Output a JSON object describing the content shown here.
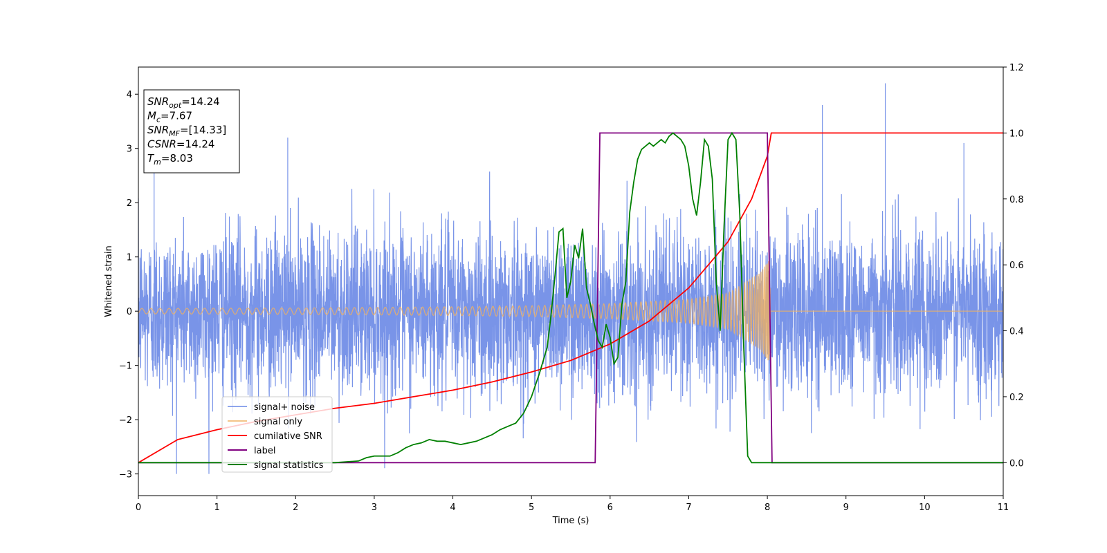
{
  "chart_data": {
    "type": "line",
    "xlabel": "Time (s)",
    "ylabel": "Whitened strain",
    "xlim": [
      0,
      11
    ],
    "ylim_left": [
      -3.4,
      4.5
    ],
    "ylim_right": [
      -0.1,
      1.2
    ],
    "x_ticks": [
      "0",
      "1",
      "2",
      "3",
      "4",
      "5",
      "6",
      "7",
      "8",
      "9",
      "10",
      "11"
    ],
    "y_ticks_left": [
      "−3",
      "−2",
      "−1",
      "0",
      "1",
      "2",
      "3",
      "4"
    ],
    "y_ticks_right": [
      "0.0",
      "0.2",
      "0.4",
      "0.6",
      "0.8",
      "1.0",
      "1.2"
    ],
    "grid": false,
    "legend_placement": "lower-left",
    "info_box": {
      "lines": [
        {
          "name": "SNR",
          "sub": "opt",
          "value": "=14.24"
        },
        {
          "name": "M",
          "sub": "c",
          "value": "=7.67"
        },
        {
          "name": "SNR",
          "sub": "MF",
          "value": "=[14.33]"
        },
        {
          "name": "CSNR",
          "sub": "",
          "value": "=14.24"
        },
        {
          "name": "T",
          "sub": "m",
          "value": "=8.03"
        }
      ]
    },
    "series": [
      {
        "name": "signal+ noise",
        "axis": "left",
        "color": "#6a88e6",
        "description_values": {
          "x_range": [
            0,
            11
          ],
          "std_approx": 0.75,
          "peaks": [
            [
              0.2,
              2.6
            ],
            [
              1.9,
              3.2
            ],
            [
              8.7,
              3.8
            ],
            [
              9.5,
              4.2
            ],
            [
              10.5,
              3.1
            ]
          ]
        }
      },
      {
        "name": "signal only",
        "axis": "left",
        "color": "#f0b060",
        "envelope": {
          "x": [
            0,
            1,
            2,
            3,
            4,
            5,
            6,
            7,
            7.5,
            7.9,
            8.03,
            8.04,
            11
          ],
          "amp": [
            0.05,
            0.055,
            0.06,
            0.07,
            0.08,
            0.1,
            0.14,
            0.22,
            0.33,
            0.7,
            0.95,
            0.0,
            0.0
          ]
        }
      },
      {
        "name": "cumilative SNR",
        "axis": "right",
        "color": "#ff0000",
        "x": [
          0,
          0.5,
          1,
          1.5,
          2,
          2.5,
          3,
          3.5,
          4,
          4.5,
          5,
          5.5,
          6,
          6.5,
          7,
          7.5,
          7.8,
          8.0,
          8.05,
          11
        ],
        "y": [
          0.0,
          0.07,
          0.1,
          0.125,
          0.145,
          0.165,
          0.18,
          0.2,
          0.22,
          0.245,
          0.275,
          0.31,
          0.36,
          0.43,
          0.53,
          0.67,
          0.8,
          0.93,
          1.0,
          1.0
        ]
      },
      {
        "name": "label",
        "axis": "right",
        "color": "#800080",
        "x": [
          0,
          5.81,
          5.87,
          8.0,
          8.06,
          11
        ],
        "y": [
          0,
          0,
          1,
          1,
          0,
          0
        ]
      },
      {
        "name": "signal statistics",
        "axis": "right",
        "color": "#008000",
        "x": [
          0,
          0.5,
          1,
          1.5,
          2,
          2.5,
          2.8,
          2.9,
          3.0,
          3.1,
          3.2,
          3.3,
          3.4,
          3.5,
          3.6,
          3.7,
          3.8,
          3.9,
          4.0,
          4.1,
          4.2,
          4.3,
          4.4,
          4.5,
          4.6,
          4.7,
          4.8,
          4.9,
          5.0,
          5.1,
          5.2,
          5.25,
          5.3,
          5.35,
          5.4,
          5.45,
          5.5,
          5.55,
          5.6,
          5.65,
          5.7,
          5.75,
          5.8,
          5.85,
          5.9,
          5.95,
          6.0,
          6.05,
          6.1,
          6.15,
          6.2,
          6.25,
          6.3,
          6.35,
          6.4,
          6.45,
          6.5,
          6.55,
          6.6,
          6.65,
          6.7,
          6.75,
          6.8,
          6.85,
          6.9,
          6.95,
          7.0,
          7.05,
          7.1,
          7.15,
          7.2,
          7.25,
          7.3,
          7.35,
          7.4,
          7.45,
          7.5,
          7.55,
          7.6,
          7.65,
          7.7,
          7.75,
          7.8,
          7.85,
          7.9,
          7.95,
          8.0,
          8.05,
          8.1,
          11
        ],
        "y": [
          0.0,
          0.0,
          0.0,
          0.0,
          0.0,
          0.0,
          0.005,
          0.015,
          0.02,
          0.02,
          0.02,
          0.03,
          0.045,
          0.055,
          0.06,
          0.07,
          0.065,
          0.065,
          0.06,
          0.055,
          0.06,
          0.065,
          0.075,
          0.085,
          0.1,
          0.11,
          0.12,
          0.15,
          0.2,
          0.27,
          0.35,
          0.45,
          0.57,
          0.7,
          0.71,
          0.5,
          0.55,
          0.66,
          0.62,
          0.71,
          0.53,
          0.48,
          0.42,
          0.37,
          0.35,
          0.42,
          0.38,
          0.3,
          0.32,
          0.48,
          0.55,
          0.76,
          0.85,
          0.92,
          0.95,
          0.96,
          0.97,
          0.96,
          0.97,
          0.98,
          0.97,
          0.99,
          1.0,
          0.99,
          0.98,
          0.96,
          0.9,
          0.8,
          0.75,
          0.85,
          0.98,
          0.96,
          0.86,
          0.55,
          0.4,
          0.72,
          0.98,
          1.0,
          0.98,
          0.75,
          0.35,
          0.02,
          0.0,
          0.0,
          0.0,
          0.0,
          0.0,
          0.0,
          0.0,
          0.0
        ]
      }
    ]
  }
}
